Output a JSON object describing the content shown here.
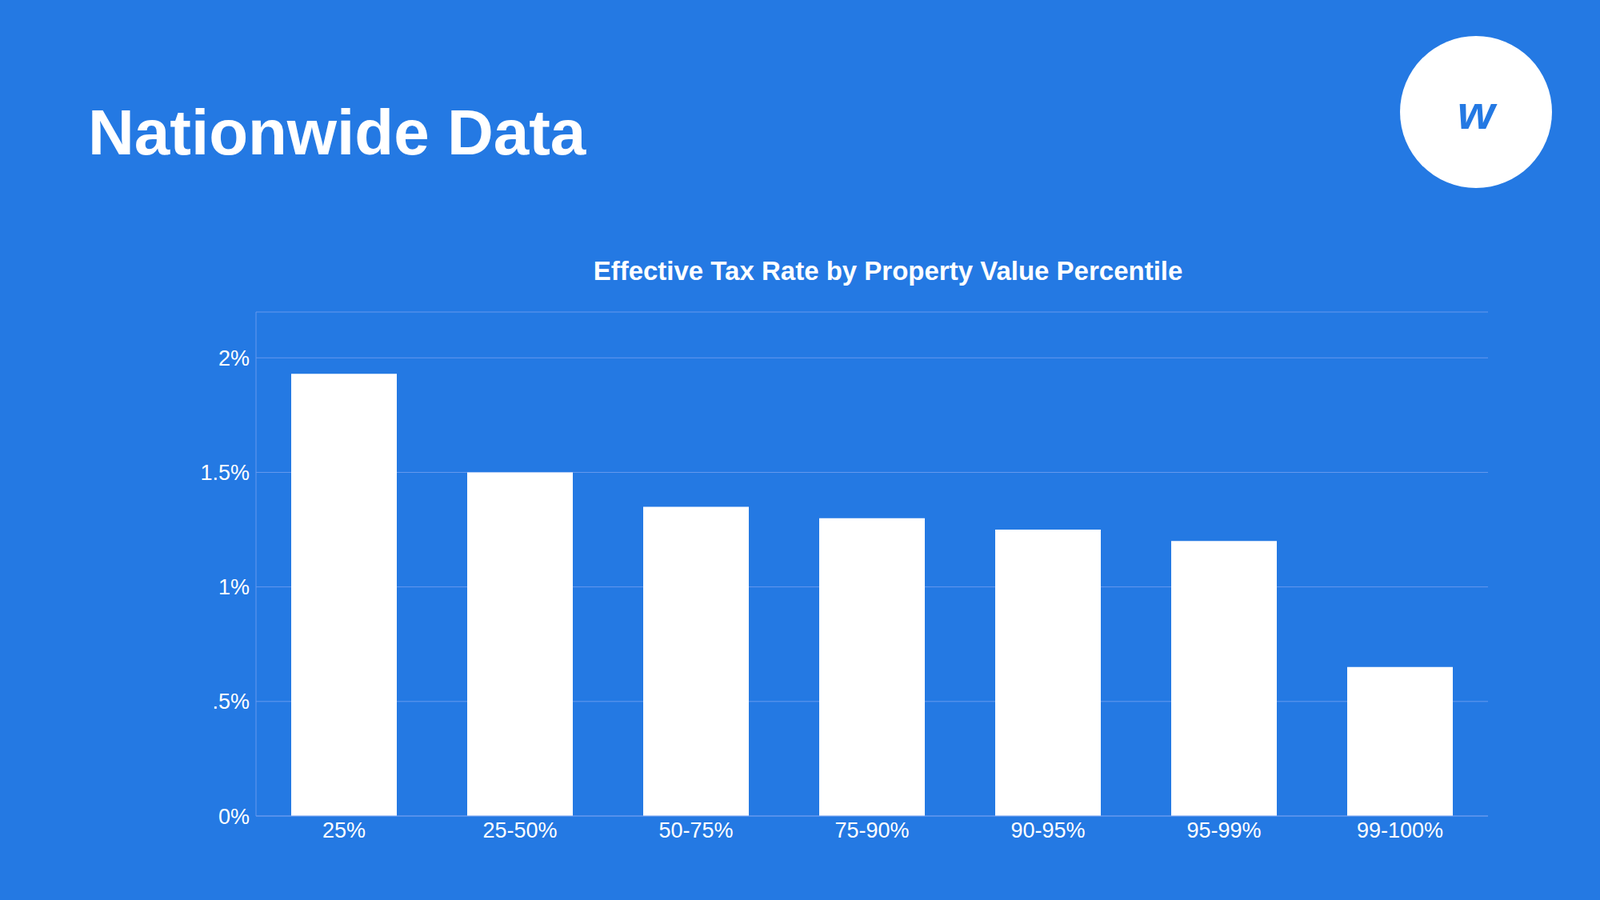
{
  "chart_data": {
    "type": "bar",
    "title": "Nationwide Data",
    "subtitle": "Effective Tax Rate by Property Value Percentile",
    "annotations": [
      "w"
    ],
    "categories": [
      "25%",
      "25-50%",
      "50-75%",
      "75-90%",
      "90-95%",
      "95-99%",
      "99-100%"
    ],
    "values": [
      0.0193,
      0.015,
      0.0135,
      0.013,
      0.0125,
      0.012,
      0.0065
    ],
    "color": "#ffffff",
    "ylim": [
      0,
      0.022
    ],
    "yticks": [
      {
        "value": 0,
        "label": "0%"
      },
      {
        "value": 0.005,
        "label": ".5%"
      },
      {
        "value": 0.01,
        "label": "1%"
      },
      {
        "value": 0.015,
        "label": "1.5%"
      },
      {
        "value": 0.02,
        "label": "2%"
      }
    ],
    "grid": true
  }
}
